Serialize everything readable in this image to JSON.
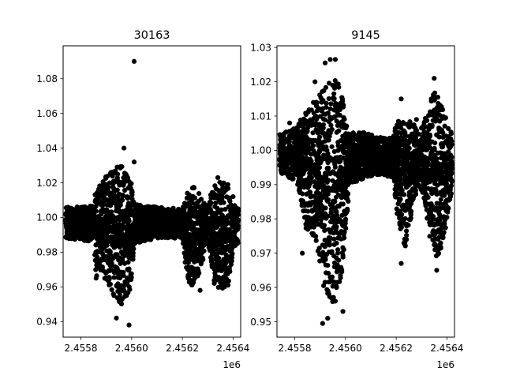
{
  "figure": {
    "background": "#ffffff",
    "marker_color": "#000000"
  },
  "chart_data": [
    {
      "type": "scatter",
      "title": "30163",
      "xlabel": "",
      "ylabel": "",
      "x_offset_label": "1e6",
      "xlim": [
        2.45573,
        2.45643
      ],
      "ylim": [
        0.931,
        1.099
      ],
      "xticks": [
        2.4558,
        2.456,
        2.4562,
        2.4564
      ],
      "xtick_labels": [
        "2.4558",
        "2.4560",
        "2.4562",
        "2.4564"
      ],
      "yticks": [
        0.94,
        0.96,
        0.98,
        1.0,
        1.02,
        1.04,
        1.06,
        1.08
      ],
      "ytick_labels": [
        "0.94",
        "0.96",
        "0.98",
        "1.00",
        "1.02",
        "1.04",
        "1.06",
        "1.08"
      ],
      "grid": false,
      "envelope": [
        {
          "x": 2.45574,
          "lo": 0.988,
          "hi": 1.006
        },
        {
          "x": 2.45585,
          "lo": 0.986,
          "hi": 1.007
        },
        {
          "x": 2.45586,
          "lo": 0.965,
          "hi": 1.018
        },
        {
          "x": 2.45588,
          "lo": 0.968,
          "hi": 1.02
        },
        {
          "x": 2.4559,
          "lo": 0.962,
          "hi": 1.024
        },
        {
          "x": 2.45592,
          "lo": 0.958,
          "hi": 1.028
        },
        {
          "x": 2.45594,
          "lo": 0.952,
          "hi": 1.029
        },
        {
          "x": 2.45596,
          "lo": 0.95,
          "hi": 1.03
        },
        {
          "x": 2.45598,
          "lo": 0.955,
          "hi": 1.025
        },
        {
          "x": 2.456,
          "lo": 0.96,
          "hi": 1.02
        },
        {
          "x": 2.45601,
          "lo": 0.985,
          "hi": 1.008
        },
        {
          "x": 2.4561,
          "lo": 0.988,
          "hi": 1.006
        },
        {
          "x": 2.4562,
          "lo": 0.988,
          "hi": 1.005
        },
        {
          "x": 2.45622,
          "lo": 0.962,
          "hi": 1.015
        },
        {
          "x": 2.45625,
          "lo": 0.96,
          "hi": 1.018
        },
        {
          "x": 2.45628,
          "lo": 0.975,
          "hi": 1.01
        },
        {
          "x": 2.4563,
          "lo": 0.985,
          "hi": 1.006
        },
        {
          "x": 2.45632,
          "lo": 0.962,
          "hi": 1.018
        },
        {
          "x": 2.45635,
          "lo": 0.958,
          "hi": 1.022
        },
        {
          "x": 2.45638,
          "lo": 0.96,
          "hi": 1.019
        },
        {
          "x": 2.4564,
          "lo": 0.98,
          "hi": 1.008
        },
        {
          "x": 2.45642,
          "lo": 0.985,
          "hi": 1.005
        }
      ],
      "points": [
        {
          "x": 2.45601,
          "y": 1.09
        },
        {
          "x": 2.45597,
          "y": 1.04
        },
        {
          "x": 2.45601,
          "y": 1.032
        },
        {
          "x": 2.45599,
          "y": 0.938
        },
        {
          "x": 2.45594,
          "y": 0.942
        },
        {
          "x": 2.45598,
          "y": 0.955
        },
        {
          "x": 2.45592,
          "y": 1.026
        },
        {
          "x": 2.45634,
          "y": 1.023
        },
        {
          "x": 2.45624,
          "y": 1.017
        },
        {
          "x": 2.45627,
          "y": 0.958
        },
        {
          "x": 2.4564,
          "y": 1.012
        },
        {
          "x": 2.45586,
          "y": 0.965
        },
        {
          "x": 2.45622,
          "y": 1.014
        },
        {
          "x": 2.45637,
          "y": 0.962
        }
      ]
    },
    {
      "type": "scatter",
      "title": "9145",
      "xlabel": "",
      "ylabel": "",
      "x_offset_label": "1e6",
      "xlim": [
        2.45573,
        2.45643
      ],
      "ylim": [
        0.9455,
        1.0305
      ],
      "xticks": [
        2.4558,
        2.456,
        2.4562,
        2.4564
      ],
      "xtick_labels": [
        "2.4558",
        "2.4560",
        "2.4562",
        "2.4564"
      ],
      "yticks": [
        0.95,
        0.96,
        0.97,
        0.98,
        0.99,
        1.0,
        1.01,
        1.02,
        1.03
      ],
      "ytick_labels": [
        "0.95",
        "0.96",
        "0.97",
        "0.98",
        "0.99",
        "1.00",
        "1.01",
        "1.02",
        "1.03"
      ],
      "grid": false,
      "envelope": [
        {
          "x": 2.45574,
          "lo": 0.993,
          "hi": 1.005
        },
        {
          "x": 2.45578,
          "lo": 0.992,
          "hi": 1.006
        },
        {
          "x": 2.45581,
          "lo": 0.99,
          "hi": 1.007
        },
        {
          "x": 2.45583,
          "lo": 0.983,
          "hi": 1.01
        },
        {
          "x": 2.45585,
          "lo": 0.975,
          "hi": 1.012
        },
        {
          "x": 2.45587,
          "lo": 0.975,
          "hi": 1.014
        },
        {
          "x": 2.45589,
          "lo": 0.97,
          "hi": 1.015
        },
        {
          "x": 2.45591,
          "lo": 0.96,
          "hi": 1.018
        },
        {
          "x": 2.45593,
          "lo": 0.958,
          "hi": 1.02
        },
        {
          "x": 2.45595,
          "lo": 0.955,
          "hi": 1.021
        },
        {
          "x": 2.45597,
          "lo": 0.96,
          "hi": 1.02
        },
        {
          "x": 2.45599,
          "lo": 0.965,
          "hi": 1.015
        },
        {
          "x": 2.456,
          "lo": 0.975,
          "hi": 1.008
        },
        {
          "x": 2.45602,
          "lo": 0.99,
          "hi": 1.006
        },
        {
          "x": 2.45608,
          "lo": 0.992,
          "hi": 1.005
        },
        {
          "x": 2.45613,
          "lo": 0.993,
          "hi": 1.004
        },
        {
          "x": 2.45619,
          "lo": 0.992,
          "hi": 1.004
        },
        {
          "x": 2.4562,
          "lo": 0.982,
          "hi": 1.008
        },
        {
          "x": 2.45622,
          "lo": 0.975,
          "hi": 1.01
        },
        {
          "x": 2.45624,
          "lo": 0.97,
          "hi": 1.009
        },
        {
          "x": 2.45627,
          "lo": 0.985,
          "hi": 1.008
        },
        {
          "x": 2.45629,
          "lo": 0.99,
          "hi": 1.006
        },
        {
          "x": 2.45631,
          "lo": 0.985,
          "hi": 1.008
        },
        {
          "x": 2.45633,
          "lo": 0.975,
          "hi": 1.014
        },
        {
          "x": 2.45635,
          "lo": 0.97,
          "hi": 1.017
        },
        {
          "x": 2.45637,
          "lo": 0.968,
          "hi": 1.016
        },
        {
          "x": 2.45639,
          "lo": 0.975,
          "hi": 1.011
        },
        {
          "x": 2.45641,
          "lo": 0.985,
          "hi": 1.006
        },
        {
          "x": 2.45642,
          "lo": 0.988,
          "hi": 1.005
        }
      ],
      "points": [
        {
          "x": 2.45594,
          "y": 1.0265
        },
        {
          "x": 2.45596,
          "y": 1.0265
        },
        {
          "x": 2.45592,
          "y": 1.0255
        },
        {
          "x": 2.45588,
          "y": 1.02
        },
        {
          "x": 2.45635,
          "y": 1.021
        },
        {
          "x": 2.45591,
          "y": 0.9495
        },
        {
          "x": 2.45593,
          "y": 0.951
        },
        {
          "x": 2.45599,
          "y": 0.953
        },
        {
          "x": 2.45596,
          "y": 0.956
        },
        {
          "x": 2.45594,
          "y": 0.963
        },
        {
          "x": 2.45636,
          "y": 0.965
        },
        {
          "x": 2.45622,
          "y": 0.967
        },
        {
          "x": 2.45583,
          "y": 0.97
        },
        {
          "x": 2.45622,
          "y": 1.015
        },
        {
          "x": 2.45578,
          "y": 1.008
        },
        {
          "x": 2.45628,
          "y": 1.009
        }
      ]
    }
  ]
}
